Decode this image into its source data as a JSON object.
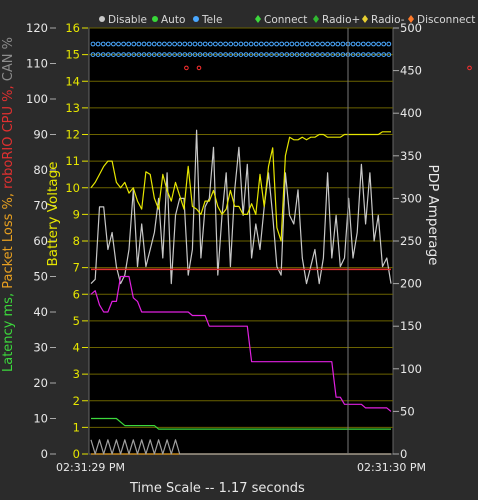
{
  "legend": {
    "items": [
      {
        "label": "Disable",
        "color": "#c8c8c8"
      },
      {
        "label": "Auto",
        "color": "#38d838"
      },
      {
        "label": "Tele",
        "color": "#4aa8ff"
      },
      {
        "label": "Connect",
        "color": "#3cd83c"
      },
      {
        "label": "Radio+",
        "color": "#30b830"
      },
      {
        "label": "Radio-",
        "color": "#e8d030"
      },
      {
        "label": "Disconnect",
        "color": "#ff7a2a"
      }
    ]
  },
  "axes": {
    "left_outer_label_parts": [
      {
        "text": "Latency ms, ",
        "color": "#3cd83c"
      },
      {
        "text": "Packet Loss %, ",
        "color": "#e8a020"
      },
      {
        "text": "roboRIO CPU %, ",
        "color": "#e03030"
      },
      {
        "text": "CAN %",
        "color": "#8c8c8c"
      }
    ],
    "battery_label": "Battery Voltage",
    "pdp_label": "PDP Amperage",
    "x_start": "02:31:29 PM",
    "x_end": "02:31:30 PM",
    "time_scale": "Time Scale -- 1.17 seconds"
  },
  "chart_data": {
    "type": "line",
    "x_range_labels": [
      "02:31:29 PM",
      "02:31:30 PM"
    ],
    "left_axis": {
      "ticks": [
        0,
        10,
        20,
        30,
        40,
        50,
        60,
        70,
        80,
        90,
        100,
        110,
        120
      ],
      "ylim": [
        0,
        120
      ]
    },
    "battery_axis": {
      "ticks": [
        0,
        1,
        2,
        3,
        4,
        5,
        6,
        7,
        8,
        9,
        10,
        11,
        12,
        13,
        14,
        15,
        16
      ],
      "ylim": [
        0,
        16
      ]
    },
    "pdp_axis": {
      "ticks": [
        0,
        50,
        100,
        150,
        200,
        250,
        300,
        350,
        400,
        450,
        500
      ],
      "ylim": [
        0,
        500
      ]
    },
    "series": [
      {
        "color": "#c8c8c8",
        "axis": "pdp",
        "values": [
          200,
          205,
          290,
          290,
          240,
          260,
          220,
          200,
          210,
          240,
          310,
          220,
          270,
          220,
          240,
          260,
          300,
          230,
          330,
          200,
          280,
          300,
          300,
          210,
          240,
          380,
          230,
          290,
          300,
          360,
          210,
          280,
          330,
          220,
          310,
          360,
          280,
          340,
          230,
          270,
          240,
          290,
          330,
          280,
          220,
          210,
          330,
          280,
          270,
          310,
          230,
          200,
          220,
          240,
          200,
          230,
          330,
          230,
          280,
          220,
          230,
          300,
          230,
          260,
          340,
          270,
          330,
          250,
          280,
          220,
          230,
          200
        ]
      },
      {
        "color": "#e6e600",
        "axis": "battery",
        "values": [
          10.0,
          10.2,
          10.5,
          10.8,
          11.0,
          11.0,
          10.2,
          10.0,
          10.2,
          9.8,
          10.0,
          9.5,
          9.2,
          10.6,
          10.5,
          9.6,
          9.2,
          10.5,
          9.9,
          9.5,
          10.2,
          9.7,
          9.2,
          10.8,
          9.3,
          9.2,
          9.0,
          9.5,
          9.5,
          9.9,
          9.3,
          9.0,
          9.2,
          9.9,
          9.3,
          9.3,
          9.0,
          9.0,
          9.4,
          9.0,
          10.5,
          9.3,
          10.8,
          11.5,
          8.5,
          8.0,
          11.2,
          11.9,
          11.8,
          11.8,
          11.9,
          11.8,
          11.9,
          11.9,
          12.0,
          12.0,
          11.9,
          11.9,
          11.9,
          11.9,
          12.0,
          12.0,
          12.0,
          12.0,
          12.0,
          12.0,
          12.0,
          12.0,
          12.0,
          12.1,
          12.1,
          12.1
        ]
      },
      {
        "color": "#e020e0",
        "axis": "left",
        "values": [
          45,
          46,
          42,
          40,
          40,
          43,
          43,
          50,
          50,
          50,
          44,
          43,
          40,
          40,
          40,
          40,
          40,
          40,
          40,
          40,
          40,
          40,
          40,
          40,
          39,
          39,
          39,
          39,
          36,
          36,
          36,
          36,
          36,
          36,
          36,
          36,
          36,
          36,
          26,
          26,
          26,
          26,
          26,
          26,
          26,
          26,
          26,
          26,
          26,
          26,
          26,
          26,
          26,
          26,
          26,
          26,
          26,
          26,
          16,
          16,
          14,
          14,
          14,
          14,
          14,
          13,
          13,
          13,
          13,
          13,
          13,
          12
        ]
      },
      {
        "color": "#3cd83c",
        "axis": "left",
        "values": [
          10,
          10,
          10,
          10,
          10,
          10,
          10,
          9,
          8,
          8,
          8,
          8,
          8,
          8,
          8,
          8,
          7,
          7,
          7,
          7,
          7,
          7,
          7,
          7,
          7,
          7,
          7,
          7,
          7,
          7,
          7,
          7,
          7,
          7,
          7,
          7,
          7,
          7,
          7,
          7,
          7,
          7,
          7,
          7,
          7,
          7,
          7,
          7,
          7,
          7,
          7,
          7,
          7,
          7,
          7,
          7,
          7,
          7,
          7,
          7,
          7,
          7,
          7,
          7,
          7,
          7,
          7,
          7,
          7,
          7,
          7,
          7
        ]
      },
      {
        "color": "#e03030",
        "axis": "left",
        "values": [
          52,
          52,
          52,
          52,
          52,
          52,
          52,
          52,
          52,
          52,
          52,
          52,
          52,
          52,
          52,
          52,
          52,
          52,
          52,
          52,
          52,
          52,
          52,
          52,
          52,
          52,
          52,
          52,
          52,
          52,
          52,
          52,
          52,
          52,
          52,
          52,
          52,
          52,
          52,
          52,
          52,
          52,
          52,
          52,
          52,
          52,
          52,
          52,
          52,
          52,
          52,
          52,
          52,
          52,
          52,
          52,
          52,
          52,
          52,
          52,
          52,
          52,
          52,
          52,
          52,
          52,
          52,
          52,
          52,
          52,
          52,
          52
        ]
      },
      {
        "color": "#e8a020",
        "axis": "left",
        "values": [
          0,
          0,
          0,
          0,
          0,
          0,
          0,
          0,
          0,
          0,
          0,
          0,
          0,
          0,
          0,
          0,
          0,
          0,
          0,
          0,
          0,
          0,
          0,
          0,
          0,
          0,
          0,
          0,
          0,
          0,
          0,
          0,
          0,
          0,
          0,
          0,
          0,
          0,
          0,
          0,
          0,
          0,
          0,
          0,
          0,
          0,
          0,
          0,
          0,
          0,
          0,
          0,
          0,
          0,
          0,
          0,
          0,
          0,
          0,
          0,
          0,
          0,
          0,
          0,
          0,
          0,
          0,
          0,
          0,
          0,
          0,
          0
        ]
      },
      {
        "color": "#a0a0a0",
        "axis": "left",
        "values": [
          4,
          0,
          4,
          0,
          4,
          0,
          4,
          0,
          4,
          0,
          4,
          0,
          4,
          0,
          4,
          0,
          4,
          0,
          4,
          0,
          4,
          0,
          0,
          0,
          0,
          0,
          0,
          0,
          0,
          0,
          0,
          0,
          0,
          0,
          0,
          0,
          0,
          0,
          0,
          0,
          0,
          0,
          0,
          0,
          0,
          0,
          0,
          0,
          0,
          0,
          0,
          0,
          0,
          0,
          0,
          0,
          0,
          0,
          0,
          0,
          0,
          0,
          0,
          0,
          0,
          0,
          0,
          0,
          0,
          0,
          0,
          0
        ]
      }
    ],
    "event_markers": {
      "blue_rows": [
        15.4,
        15.0
      ],
      "red_row": 14.5,
      "red_points": [
        6,
        9,
        73,
        78
      ]
    }
  }
}
